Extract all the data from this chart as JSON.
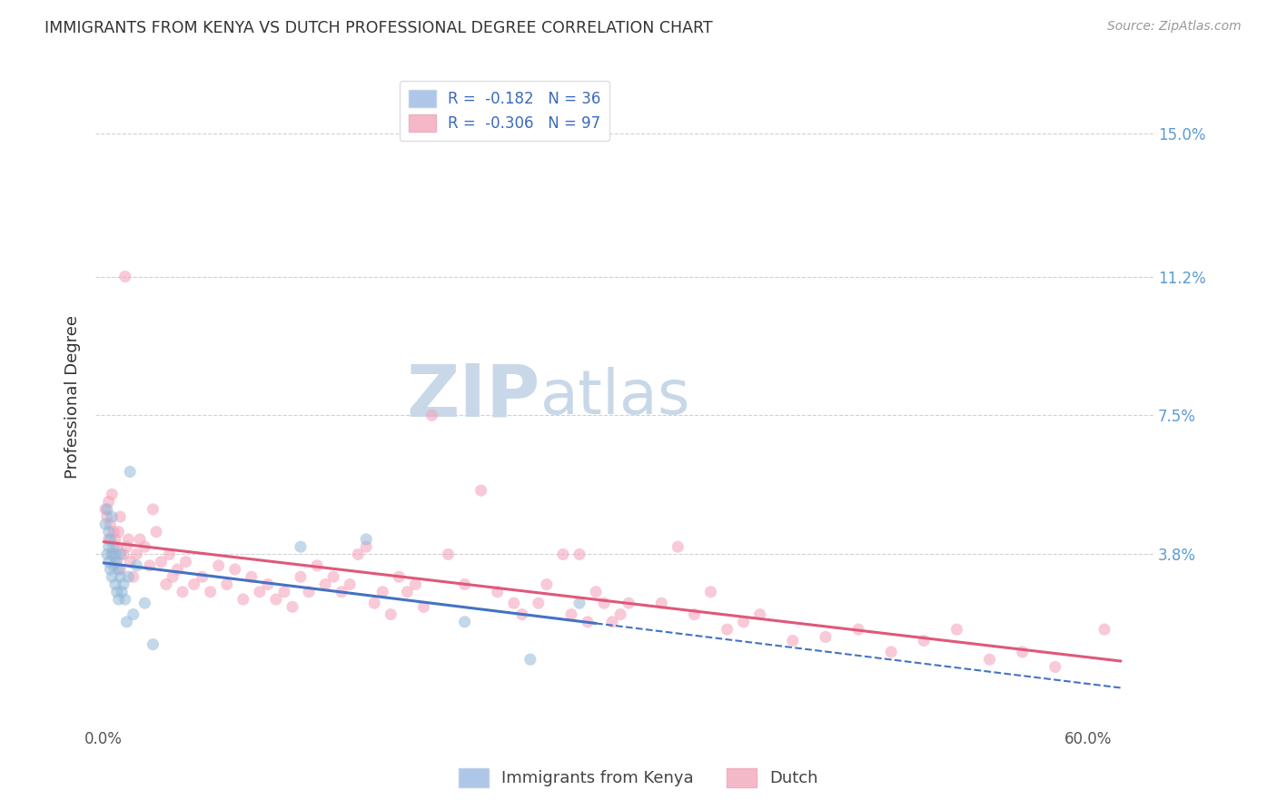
{
  "title": "IMMIGRANTS FROM KENYA VS DUTCH PROFESSIONAL DEGREE CORRELATION CHART",
  "source": "Source: ZipAtlas.com",
  "ylabel": "Professional Degree",
  "x_tick_labels": [
    "0.0%",
    "",
    "",
    "",
    "",
    "",
    "60.0%"
  ],
  "x_tick_values": [
    0.0,
    0.1,
    0.2,
    0.3,
    0.4,
    0.5,
    0.6
  ],
  "y_tick_labels": [
    "15.0%",
    "11.2%",
    "7.5%",
    "3.8%"
  ],
  "y_tick_values": [
    0.15,
    0.112,
    0.075,
    0.038
  ],
  "xlim": [
    -0.005,
    0.64
  ],
  "ylim": [
    -0.008,
    0.168
  ],
  "kenya_color": "#92b8d8",
  "dutch_color": "#f4a0b8",
  "kenya_line_color": "#4472c4",
  "dutch_line_color": "#e05878",
  "background_color": "#ffffff",
  "grid_color": "#cccccc",
  "title_color": "#333333",
  "kenya_scatter_x": [
    0.001,
    0.002,
    0.002,
    0.003,
    0.003,
    0.003,
    0.004,
    0.004,
    0.005,
    0.005,
    0.005,
    0.006,
    0.006,
    0.007,
    0.007,
    0.008,
    0.008,
    0.009,
    0.009,
    0.01,
    0.01,
    0.011,
    0.012,
    0.013,
    0.014,
    0.015,
    0.016,
    0.018,
    0.02,
    0.025,
    0.03,
    0.12,
    0.16,
    0.22,
    0.26,
    0.29
  ],
  "kenya_scatter_y": [
    0.046,
    0.05,
    0.038,
    0.044,
    0.04,
    0.036,
    0.042,
    0.034,
    0.048,
    0.038,
    0.032,
    0.04,
    0.035,
    0.038,
    0.03,
    0.036,
    0.028,
    0.034,
    0.026,
    0.038,
    0.032,
    0.028,
    0.03,
    0.026,
    0.02,
    0.032,
    0.06,
    0.022,
    0.035,
    0.025,
    0.014,
    0.04,
    0.042,
    0.02,
    0.01,
    0.025
  ],
  "dutch_scatter_x": [
    0.001,
    0.002,
    0.003,
    0.003,
    0.004,
    0.005,
    0.005,
    0.006,
    0.007,
    0.007,
    0.008,
    0.009,
    0.01,
    0.01,
    0.012,
    0.013,
    0.014,
    0.015,
    0.016,
    0.018,
    0.02,
    0.022,
    0.025,
    0.028,
    0.03,
    0.032,
    0.035,
    0.038,
    0.04,
    0.042,
    0.045,
    0.048,
    0.05,
    0.055,
    0.06,
    0.065,
    0.07,
    0.075,
    0.08,
    0.085,
    0.09,
    0.095,
    0.1,
    0.105,
    0.11,
    0.115,
    0.12,
    0.125,
    0.13,
    0.135,
    0.14,
    0.145,
    0.15,
    0.155,
    0.16,
    0.165,
    0.17,
    0.175,
    0.18,
    0.185,
    0.19,
    0.195,
    0.2,
    0.21,
    0.22,
    0.23,
    0.24,
    0.25,
    0.255,
    0.265,
    0.27,
    0.28,
    0.285,
    0.29,
    0.295,
    0.3,
    0.305,
    0.31,
    0.315,
    0.32,
    0.34,
    0.35,
    0.36,
    0.37,
    0.38,
    0.39,
    0.4,
    0.42,
    0.44,
    0.46,
    0.48,
    0.5,
    0.52,
    0.54,
    0.56,
    0.58,
    0.61
  ],
  "dutch_scatter_y": [
    0.05,
    0.048,
    0.052,
    0.042,
    0.046,
    0.054,
    0.038,
    0.044,
    0.042,
    0.036,
    0.04,
    0.044,
    0.048,
    0.034,
    0.038,
    0.112,
    0.04,
    0.042,
    0.036,
    0.032,
    0.038,
    0.042,
    0.04,
    0.035,
    0.05,
    0.044,
    0.036,
    0.03,
    0.038,
    0.032,
    0.034,
    0.028,
    0.036,
    0.03,
    0.032,
    0.028,
    0.035,
    0.03,
    0.034,
    0.026,
    0.032,
    0.028,
    0.03,
    0.026,
    0.028,
    0.024,
    0.032,
    0.028,
    0.035,
    0.03,
    0.032,
    0.028,
    0.03,
    0.038,
    0.04,
    0.025,
    0.028,
    0.022,
    0.032,
    0.028,
    0.03,
    0.024,
    0.075,
    0.038,
    0.03,
    0.055,
    0.028,
    0.025,
    0.022,
    0.025,
    0.03,
    0.038,
    0.022,
    0.038,
    0.02,
    0.028,
    0.025,
    0.02,
    0.022,
    0.025,
    0.025,
    0.04,
    0.022,
    0.028,
    0.018,
    0.02,
    0.022,
    0.015,
    0.016,
    0.018,
    0.012,
    0.015,
    0.018,
    0.01,
    0.012,
    0.008,
    0.018
  ],
  "watermark_zip": "ZIP",
  "watermark_atlas": "atlas",
  "watermark_color": "#c8d8e8",
  "watermark_fontsize": 58
}
